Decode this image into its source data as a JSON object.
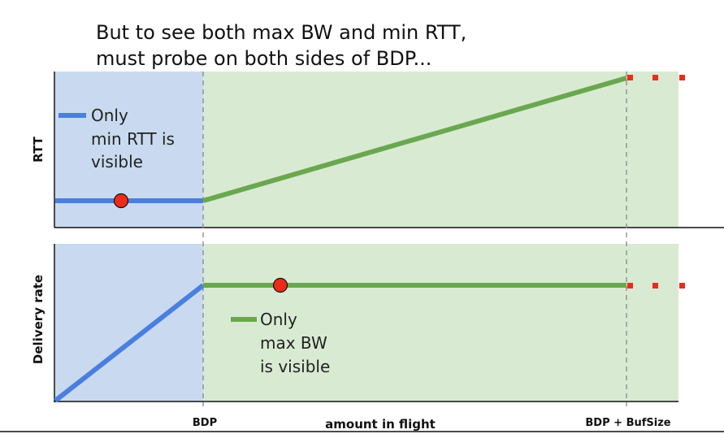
{
  "title": {
    "line1": "But to see both max BW and min RTT,",
    "line2": "must probe on both sides of BDP..."
  },
  "x_axis": {
    "label": "amount in flight",
    "ticks": [
      "BDP",
      "BDP + BufSize"
    ]
  },
  "rtt_panel": {
    "ylabel": "RTT",
    "legend_line1": "Only",
    "legend_line2": "min RTT is",
    "legend_line3": "visible"
  },
  "rate_panel": {
    "ylabel": "Delivery rate",
    "legend_line1": "Only",
    "legend_line2": "max BW",
    "legend_line3": "is visible"
  },
  "colors": {
    "blue_region": "#c9daf0",
    "green_region": "#d9ead3",
    "blue_line": "#4a7fe0",
    "green_line": "#6aa84f",
    "dot": "#ee2b1b",
    "continuation": "#ee2b1b"
  }
}
